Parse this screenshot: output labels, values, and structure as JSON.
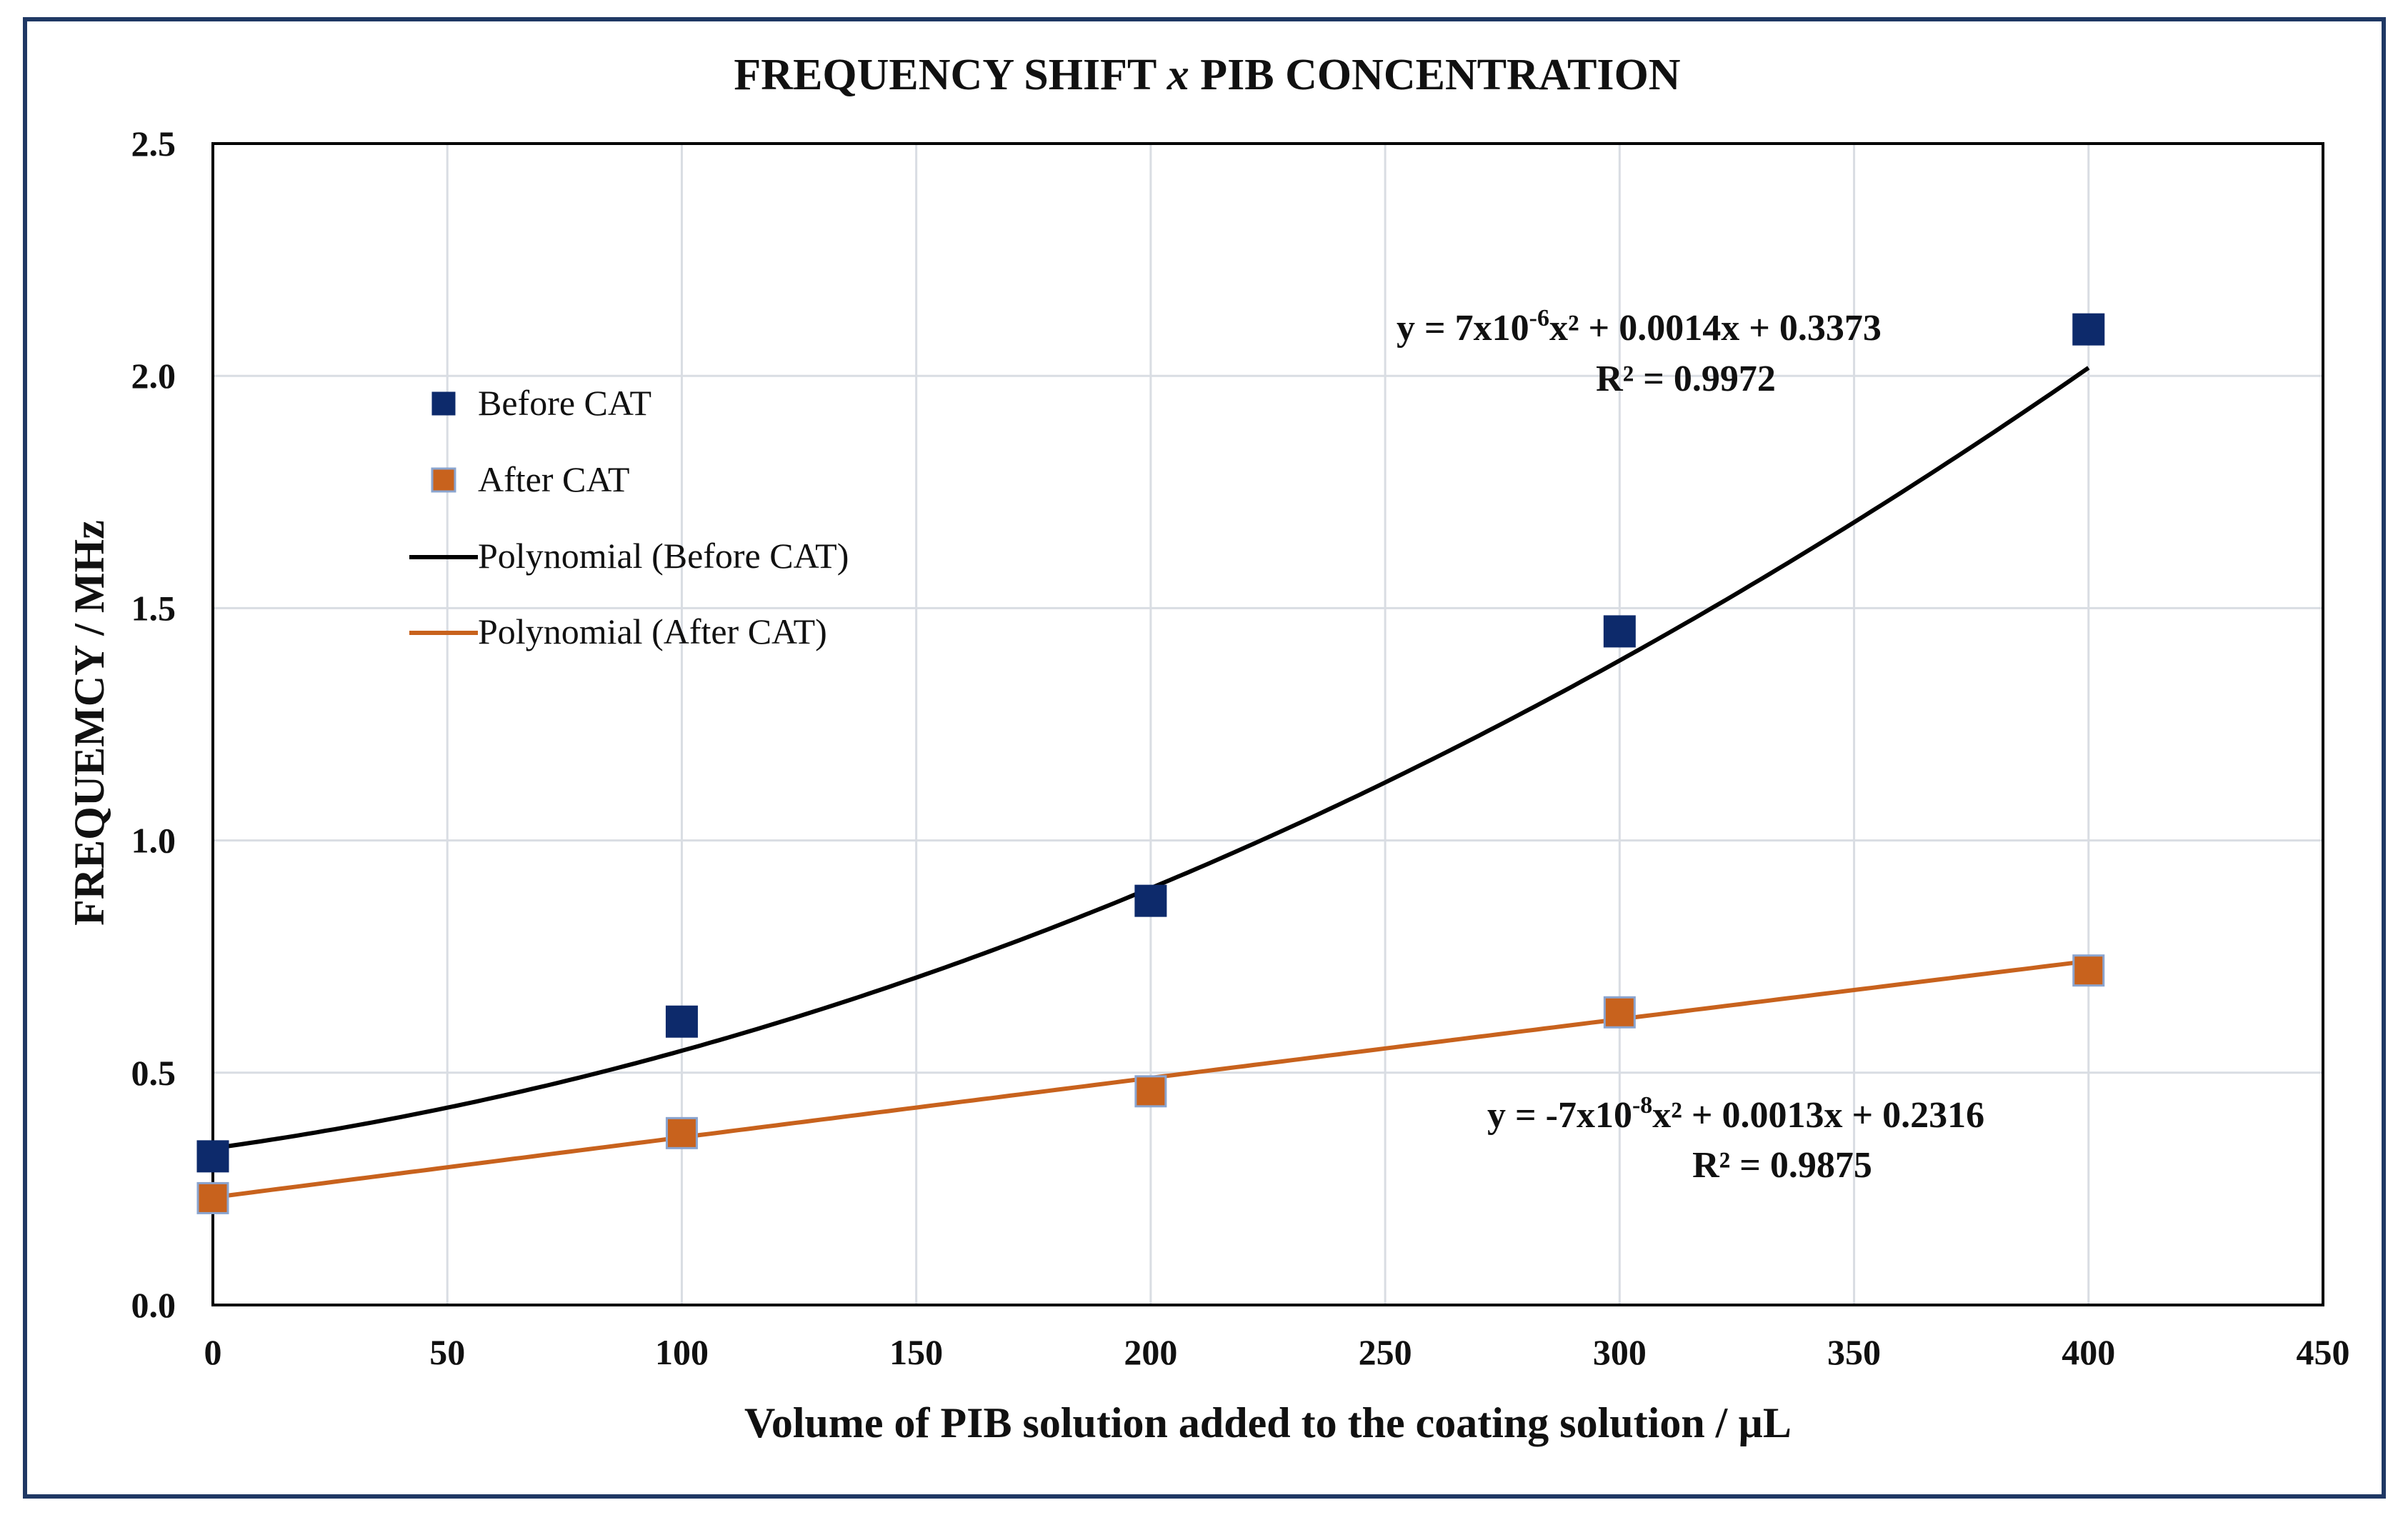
{
  "chart_data": {
    "type": "scatter",
    "title": {
      "pre": "FREQUENCY SHIFT ",
      "italic": "x",
      "post": " PIB CONCENTRATION"
    },
    "xlabel": "Volume of PIB solution added to the coating solution / µL",
    "ylabel": "FREQUEMCY / MHz",
    "xlim": [
      0,
      450
    ],
    "ylim": [
      0,
      2.5
    ],
    "x_ticks": [
      0,
      50,
      100,
      150,
      200,
      250,
      300,
      350,
      400,
      450
    ],
    "y_ticks": [
      0.0,
      0.5,
      1.0,
      1.5,
      2.0,
      2.5
    ],
    "x_tick_labels": [
      "0",
      "50",
      "100",
      "150",
      "200",
      "250",
      "300",
      "350",
      "400",
      "450"
    ],
    "y_tick_labels": [
      "0.0",
      "0.5",
      "1.0",
      "1.5",
      "2.0",
      "2.5"
    ],
    "grid": true,
    "legend_position": "upper-left",
    "series": [
      {
        "name": "Before CAT",
        "marker": "square",
        "color": "#0d2a6b",
        "edge_color": "#0d2a6b",
        "x": [
          0,
          100,
          200,
          300,
          400
        ],
        "y": [
          0.32,
          0.61,
          0.87,
          1.45,
          2.1
        ]
      },
      {
        "name": "After CAT",
        "marker": "square",
        "color": "#c8621d",
        "edge_color": "#8aa4cf",
        "x": [
          0,
          100,
          200,
          300,
          400
        ],
        "y": [
          0.23,
          0.37,
          0.46,
          0.63,
          0.72
        ]
      }
    ],
    "trendlines": [
      {
        "name": "Polynomial (Before CAT)",
        "type": "polynomial",
        "color": "#000000",
        "coefficients": [
          7e-06,
          0.0014,
          0.3373
        ],
        "x_range": [
          0,
          400
        ],
        "equation": {
          "lead": "y = 7x10",
          "exp": "-6",
          "rest": "x² + 0.0014x + 0.3373"
        },
        "r2": "R² = 0.9972"
      },
      {
        "name": "Polynomial (After CAT)",
        "type": "polynomial",
        "color": "#c8621d",
        "coefficients": [
          -7e-08,
          0.0013,
          0.2316
        ],
        "x_range": [
          0,
          400
        ],
        "equation": {
          "lead": "y = -7x10",
          "exp": "-8",
          "rest": "x² + 0.0013x + 0.2316"
        },
        "r2": "R² = 0.9875"
      }
    ],
    "legend": [
      {
        "label": "Before CAT",
        "kind": "marker",
        "color": "#0d2a6b",
        "edge_color": "#0d2a6b"
      },
      {
        "label": "After CAT",
        "kind": "marker",
        "color": "#c8621d",
        "edge_color": "#8aa4cf"
      },
      {
        "label": "Polynomial (Before CAT)",
        "kind": "line",
        "color": "#000000"
      },
      {
        "label": "Polynomial (After CAT)",
        "kind": "line",
        "color": "#c8621d"
      }
    ]
  }
}
